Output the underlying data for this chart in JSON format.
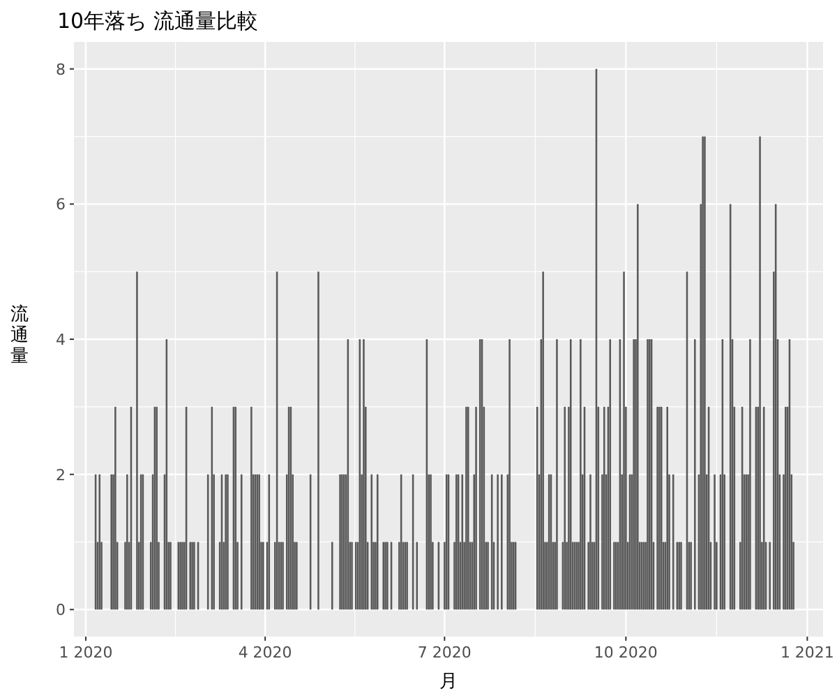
{
  "chart_data": {
    "type": "bar",
    "title": "10年落ち 流通量比較",
    "xlabel": "月",
    "ylabel": "流通量",
    "color": "#595959",
    "grid": true,
    "xlim": [
      "2019-12-26",
      "2021-01-09"
    ],
    "xticks": [
      {
        "value": "2020-01-01",
        "label": "1 2020"
      },
      {
        "value": "2020-04-01",
        "label": "4 2020"
      },
      {
        "value": "2020-07-01",
        "label": "7 2020"
      },
      {
        "value": "2020-10-01",
        "label": "10 2020"
      },
      {
        "value": "2021-01-01",
        "label": "1 2021"
      }
    ],
    "ylim": [
      -0.4,
      8.4
    ],
    "yticks": [
      0,
      2,
      4,
      6,
      8
    ],
    "x": [
      "2020-01-06",
      "2020-01-07",
      "2020-01-08",
      "2020-01-09",
      "2020-01-14",
      "2020-01-15",
      "2020-01-16",
      "2020-01-17",
      "2020-01-21",
      "2020-01-22",
      "2020-01-23",
      "2020-01-24",
      "2020-01-27",
      "2020-01-28",
      "2020-01-29",
      "2020-01-30",
      "2020-02-03",
      "2020-02-04",
      "2020-02-05",
      "2020-02-06",
      "2020-02-07",
      "2020-02-10",
      "2020-02-11",
      "2020-02-12",
      "2020-02-13",
      "2020-02-17",
      "2020-02-18",
      "2020-02-19",
      "2020-02-20",
      "2020-02-21",
      "2020-02-23",
      "2020-02-24",
      "2020-02-25",
      "2020-02-27",
      "2020-03-03",
      "2020-03-05",
      "2020-03-06",
      "2020-03-09",
      "2020-03-10",
      "2020-03-11",
      "2020-03-12",
      "2020-03-13",
      "2020-03-16",
      "2020-03-17",
      "2020-03-18",
      "2020-03-20",
      "2020-03-25",
      "2020-03-26",
      "2020-03-27",
      "2020-03-28",
      "2020-03-29",
      "2020-03-30",
      "2020-03-31",
      "2020-04-02",
      "2020-04-03",
      "2020-04-06",
      "2020-04-07",
      "2020-04-08",
      "2020-04-09",
      "2020-04-10",
      "2020-04-12",
      "2020-04-13",
      "2020-04-14",
      "2020-04-15",
      "2020-04-16",
      "2020-04-17",
      "2020-04-24",
      "2020-04-28",
      "2020-05-05",
      "2020-05-09",
      "2020-05-10",
      "2020-05-11",
      "2020-05-12",
      "2020-05-13",
      "2020-05-14",
      "2020-05-15",
      "2020-05-17",
      "2020-05-18",
      "2020-05-19",
      "2020-05-20",
      "2020-05-21",
      "2020-05-22",
      "2020-05-23",
      "2020-05-25",
      "2020-05-26",
      "2020-05-27",
      "2020-05-28",
      "2020-05-31",
      "2020-06-01",
      "2020-06-02",
      "2020-06-04",
      "2020-06-08",
      "2020-06-09",
      "2020-06-10",
      "2020-06-11",
      "2020-06-12",
      "2020-06-15",
      "2020-06-17",
      "2020-06-22",
      "2020-06-23",
      "2020-06-24",
      "2020-06-25",
      "2020-06-28",
      "2020-07-01",
      "2020-07-02",
      "2020-07-03",
      "2020-07-06",
      "2020-07-07",
      "2020-07-08",
      "2020-07-09",
      "2020-07-10",
      "2020-07-11",
      "2020-07-12",
      "2020-07-13",
      "2020-07-14",
      "2020-07-15",
      "2020-07-16",
      "2020-07-17",
      "2020-07-19",
      "2020-07-20",
      "2020-07-21",
      "2020-07-22",
      "2020-07-23",
      "2020-07-25",
      "2020-07-26",
      "2020-07-28",
      "2020-07-30",
      "2020-08-02",
      "2020-08-03",
      "2020-08-04",
      "2020-08-05",
      "2020-08-06",
      "2020-08-17",
      "2020-08-18",
      "2020-08-19",
      "2020-08-20",
      "2020-08-21",
      "2020-08-22",
      "2020-08-23",
      "2020-08-24",
      "2020-08-25",
      "2020-08-26",
      "2020-08-27",
      "2020-08-30",
      "2020-08-31",
      "2020-09-01",
      "2020-09-02",
      "2020-09-03",
      "2020-09-04",
      "2020-09-05",
      "2020-09-06",
      "2020-09-07",
      "2020-09-08",
      "2020-09-09",
      "2020-09-10",
      "2020-09-12",
      "2020-09-13",
      "2020-09-14",
      "2020-09-15",
      "2020-09-16",
      "2020-09-17",
      "2020-09-19",
      "2020-09-20",
      "2020-09-21",
      "2020-09-22",
      "2020-09-23",
      "2020-09-25",
      "2020-09-26",
      "2020-09-27",
      "2020-09-28",
      "2020-09-29",
      "2020-09-30",
      "2020-10-01",
      "2020-10-02",
      "2020-10-03",
      "2020-10-04",
      "2020-10-05",
      "2020-10-06",
      "2020-10-07",
      "2020-10-08",
      "2020-10-09",
      "2020-10-10",
      "2020-10-11",
      "2020-10-12",
      "2020-10-13",
      "2020-10-14",
      "2020-10-15",
      "2020-10-17",
      "2020-10-18",
      "2020-10-19",
      "2020-10-20",
      "2020-10-21",
      "2020-10-22",
      "2020-10-23",
      "2020-10-25",
      "2020-10-27",
      "2020-10-28",
      "2020-10-29",
      "2020-11-01",
      "2020-11-02",
      "2020-11-03",
      "2020-11-05",
      "2020-11-07",
      "2020-11-08",
      "2020-11-09",
      "2020-11-10",
      "2020-11-11",
      "2020-11-12",
      "2020-11-13",
      "2020-11-15",
      "2020-11-16",
      "2020-11-18",
      "2020-11-19",
      "2020-11-20",
      "2020-11-23",
      "2020-11-24",
      "2020-11-25",
      "2020-11-28",
      "2020-11-29",
      "2020-11-30",
      "2020-12-01",
      "2020-12-02",
      "2020-12-03",
      "2020-12-06",
      "2020-12-07",
      "2020-12-08",
      "2020-12-09",
      "2020-12-10",
      "2020-12-11",
      "2020-12-13",
      "2020-12-15",
      "2020-12-16",
      "2020-12-17",
      "2020-12-18",
      "2020-12-20",
      "2020-12-21",
      "2020-12-22",
      "2020-12-23",
      "2020-12-24",
      "2020-12-25"
    ],
    "values": [
      2,
      1,
      2,
      1,
      2,
      2,
      3,
      1,
      1,
      2,
      1,
      3,
      5,
      1,
      2,
      2,
      1,
      2,
      3,
      3,
      1,
      2,
      4,
      1,
      1,
      1,
      1,
      1,
      1,
      3,
      1,
      1,
      1,
      1,
      2,
      3,
      2,
      1,
      2,
      1,
      2,
      2,
      3,
      3,
      1,
      2,
      3,
      2,
      2,
      2,
      2,
      1,
      1,
      1,
      2,
      1,
      5,
      1,
      1,
      1,
      2,
      3,
      3,
      2,
      1,
      1,
      2,
      5,
      1,
      2,
      2,
      2,
      2,
      4,
      1,
      1,
      1,
      1,
      4,
      2,
      4,
      3,
      1,
      2,
      1,
      1,
      2,
      1,
      1,
      1,
      1,
      1,
      2,
      1,
      1,
      1,
      2,
      1,
      4,
      2,
      2,
      1,
      1,
      1,
      2,
      2,
      1,
      2,
      2,
      1,
      2,
      1,
      3,
      3,
      1,
      1,
      2,
      3,
      4,
      4,
      3,
      1,
      1,
      2,
      1,
      2,
      2,
      2,
      4,
      1,
      1,
      1,
      3,
      2,
      4,
      5,
      1,
      1,
      2,
      2,
      1,
      1,
      4,
      1,
      3,
      1,
      3,
      4,
      1,
      1,
      1,
      1,
      4,
      2,
      3,
      1,
      2,
      1,
      1,
      8,
      3,
      2,
      3,
      2,
      3,
      4,
      1,
      1,
      1,
      4,
      2,
      5,
      3,
      1,
      2,
      2,
      4,
      4,
      6,
      1,
      1,
      1,
      1,
      4,
      4,
      4,
      1,
      3,
      3,
      3,
      1,
      1,
      3,
      2,
      2,
      1,
      1,
      1,
      5,
      1,
      1,
      4,
      2,
      6,
      7,
      7,
      2,
      3,
      1,
      2,
      1,
      2,
      4,
      2,
      6,
      4,
      3,
      1,
      3,
      2,
      2,
      2,
      4,
      3,
      3,
      7,
      1,
      3,
      1,
      1,
      5,
      6,
      4,
      2,
      2,
      3,
      3,
      4,
      2,
      1
    ]
  }
}
